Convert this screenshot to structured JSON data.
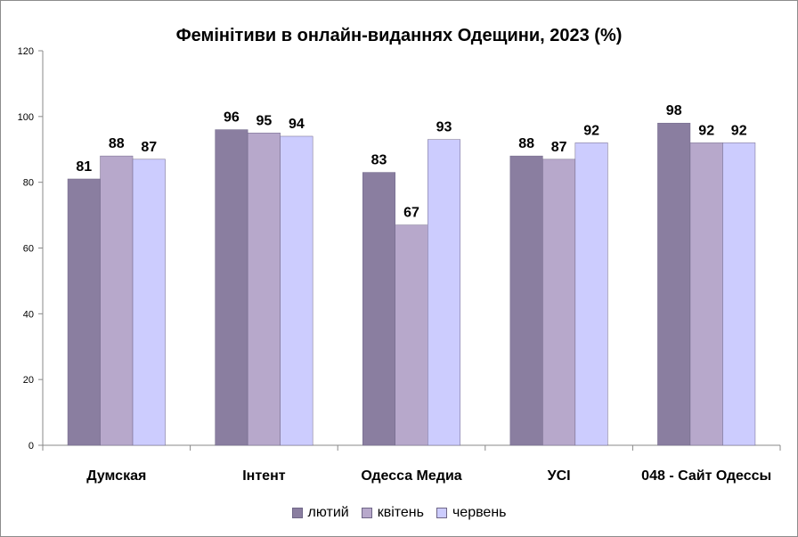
{
  "chart_data": {
    "type": "bar",
    "title": "Фемінітиви в онлайн-виданнях Одещини, 2023 (%)",
    "categories": [
      "Думская",
      "Інтент",
      "Одесса Медиа",
      "УСІ",
      "048 - Сайт Одессы"
    ],
    "series": [
      {
        "name": "лютий",
        "color": "#8a7ea0",
        "values": [
          81,
          96,
          83,
          88,
          98
        ]
      },
      {
        "name": "квітень",
        "color": "#b7a8cb",
        "values": [
          88,
          95,
          67,
          87,
          92
        ]
      },
      {
        "name": "червень",
        "color": "#ccccfe",
        "values": [
          87,
          94,
          93,
          92,
          92
        ]
      }
    ],
    "ylim": [
      0,
      120
    ],
    "yticks": [
      0,
      20,
      40,
      60,
      80,
      100,
      120
    ],
    "xlabel": "",
    "ylabel": "",
    "grid": false,
    "legend": "bottom"
  }
}
